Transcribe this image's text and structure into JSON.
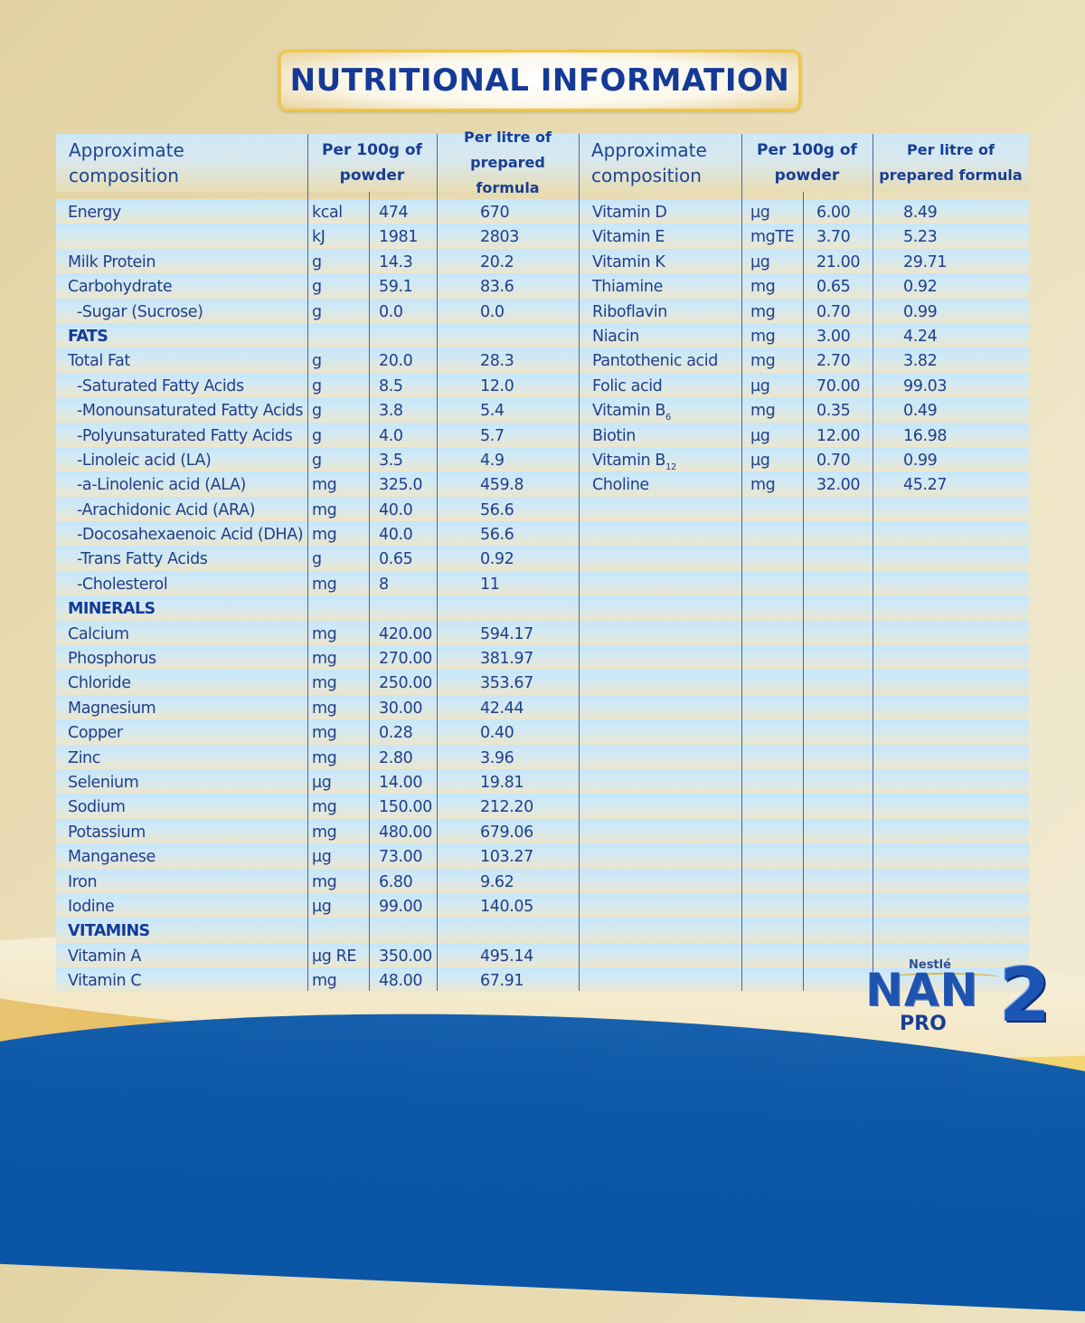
{
  "title": "NUTRITIONAL INFORMATION",
  "headers": {
    "composition": [
      "Approximate",
      "composition"
    ],
    "per100g": [
      "Per 100g of",
      "powder"
    ],
    "perLitre": [
      "Per litre of",
      "prepared formula"
    ]
  },
  "left_rows": [
    {
      "name": "Energy",
      "unit": "kcal",
      "per100g": "474",
      "perLitre": "670"
    },
    {
      "name": "",
      "unit": "kJ",
      "per100g": "1981",
      "perLitre": "2803"
    },
    {
      "name": "Milk Protein",
      "unit": "g",
      "per100g": "14.3",
      "perLitre": "20.2"
    },
    {
      "name": "Carbohydrate",
      "unit": "g",
      "per100g": "59.1",
      "perLitre": "83.6"
    },
    {
      "name": "  -Sugar (Sucrose)",
      "unit": "g",
      "per100g": "0.0",
      "perLitre": "0.0"
    },
    {
      "name": "FATS",
      "section": true,
      "unit": "",
      "per100g": "",
      "perLitre": ""
    },
    {
      "name": "Total Fat",
      "unit": "g",
      "per100g": "20.0",
      "perLitre": "28.3"
    },
    {
      "name": "  -Saturated Fatty Acids",
      "unit": "g",
      "per100g": "8.5",
      "perLitre": "12.0"
    },
    {
      "name": "  -Monounsaturated Fatty Acids",
      "unit": "g",
      "per100g": "3.8",
      "perLitre": "5.4"
    },
    {
      "name": "  -Polyunsaturated Fatty Acids",
      "unit": "g",
      "per100g": "4.0",
      "perLitre": "5.7"
    },
    {
      "name": "  -Linoleic acid (LA)",
      "unit": "g",
      "per100g": "3.5",
      "perLitre": "4.9"
    },
    {
      "name": "  -a-Linolenic acid (ALA)",
      "unit": "mg",
      "per100g": "325.0",
      "perLitre": "459.8"
    },
    {
      "name": "  -Arachidonic Acid (ARA)",
      "unit": "mg",
      "per100g": "40.0",
      "perLitre": "56.6"
    },
    {
      "name": "  -Docosahexaenoic Acid (DHA)",
      "unit": "mg",
      "per100g": "40.0",
      "perLitre": "56.6"
    },
    {
      "name": "  -Trans Fatty Acids",
      "unit": "g",
      "per100g": "0.65",
      "perLitre": "0.92"
    },
    {
      "name": "  -Cholesterol",
      "unit": "mg",
      "per100g": "8",
      "perLitre": "11"
    },
    {
      "name": "MINERALS",
      "section": true,
      "unit": "",
      "per100g": "",
      "perLitre": ""
    },
    {
      "name": "Calcium",
      "unit": "mg",
      "per100g": "420.00",
      "perLitre": "594.17"
    },
    {
      "name": "Phosphorus",
      "unit": "mg",
      "per100g": "270.00",
      "perLitre": "381.97"
    },
    {
      "name": "Chloride",
      "unit": "mg",
      "per100g": "250.00",
      "perLitre": "353.67"
    },
    {
      "name": "Magnesium",
      "unit": "mg",
      "per100g": "30.00",
      "perLitre": "42.44"
    },
    {
      "name": "Copper",
      "unit": "mg",
      "per100g": "0.28",
      "perLitre": "0.40"
    },
    {
      "name": "Zinc",
      "unit": "mg",
      "per100g": "2.80",
      "perLitre": "3.96"
    },
    {
      "name": "Selenium",
      "unit": "µg",
      "per100g": "14.00",
      "perLitre": "19.81"
    },
    {
      "name": "Sodium",
      "unit": "mg",
      "per100g": "150.00",
      "perLitre": "212.20"
    },
    {
      "name": "Potassium",
      "unit": "mg",
      "per100g": "480.00",
      "perLitre": "679.06"
    },
    {
      "name": "Manganese",
      "unit": "µg",
      "per100g": "73.00",
      "perLitre": "103.27"
    },
    {
      "name": "Iron",
      "unit": "mg",
      "per100g": "6.80",
      "perLitre": "9.62"
    },
    {
      "name": "Iodine",
      "unit": "µg",
      "per100g": "99.00",
      "perLitre": "140.05"
    },
    {
      "name": "VITAMINS",
      "section": true,
      "unit": "",
      "per100g": "",
      "perLitre": ""
    },
    {
      "name": "Vitamin A",
      "unit": "µg RE",
      "per100g": "350.00",
      "perLitre": "495.14"
    },
    {
      "name": "Vitamin C",
      "unit": "mg",
      "per100g": "48.00",
      "perLitre": "67.91"
    }
  ],
  "right_rows": [
    {
      "name": "Vitamin D",
      "unit": "µg",
      "per100g": "6.00",
      "perLitre": "8.49"
    },
    {
      "name": "Vitamin E",
      "unit": "mgTE",
      "per100g": "3.70",
      "perLitre": "5.23"
    },
    {
      "name": "Vitamin K",
      "unit": "µg",
      "per100g": "21.00",
      "perLitre": "29.71"
    },
    {
      "name": "Thiamine",
      "unit": "mg",
      "per100g": "0.65",
      "perLitre": "0.92"
    },
    {
      "name": "Riboflavin",
      "unit": "mg",
      "per100g": "0.70",
      "perLitre": "0.99"
    },
    {
      "name": "Niacin",
      "unit": "mg",
      "per100g": "3.00",
      "perLitre": "4.24"
    },
    {
      "name": "Pantothenic acid",
      "unit": "mg",
      "per100g": "2.70",
      "perLitre": "3.82"
    },
    {
      "name": "Folic acid",
      "unit": "µg",
      "per100g": "70.00",
      "perLitre": "99.03"
    },
    {
      "name": "Vitamin B",
      "sub": "6",
      "unit": "mg",
      "per100g": "0.35",
      "perLitre": "0.49"
    },
    {
      "name": "Biotin",
      "unit": "µg",
      "per100g": "12.00",
      "perLitre": "16.98"
    },
    {
      "name": "Vitamin B",
      "sub": "12",
      "unit": "µg",
      "per100g": "0.70",
      "perLitre": "0.99"
    },
    {
      "name": "Choline",
      "unit": "mg",
      "per100g": "32.00",
      "perLitre": "45.27"
    }
  ],
  "brand": {
    "maker": "Nestlé",
    "product": "NAN",
    "line": "PRO",
    "stage": "2"
  },
  "colors": {
    "text_blue": "#1c3f8c",
    "title_blue": "#143a96",
    "row_blue": "#c6e6fa",
    "row_cream": "#ece6cc",
    "footer_blue": "#0b56a6",
    "gold": "#e8b54a"
  }
}
